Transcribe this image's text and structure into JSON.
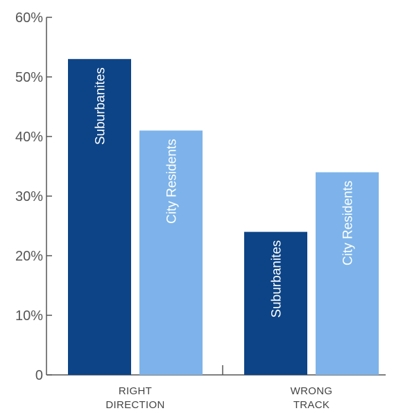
{
  "chart_data": {
    "type": "bar",
    "title": "",
    "xlabel": "",
    "ylabel": "",
    "ylim": [
      0,
      60
    ],
    "yticks": [
      "0",
      "10%",
      "20%",
      "30%",
      "40%",
      "50%",
      "60%"
    ],
    "yticks_values": [
      0,
      10,
      20,
      30,
      40,
      50,
      60
    ],
    "grid": false,
    "legend": "none",
    "categories": [
      "RIGHT DIRECTION",
      "WRONG TRACK"
    ],
    "category_lines": [
      [
        "RIGHT",
        "DIRECTION"
      ],
      [
        "WRONG",
        "TRACK"
      ]
    ],
    "series": [
      {
        "name": "Suburbanites",
        "color": "#0d4487",
        "values": [
          53,
          24
        ]
      },
      {
        "name": "City Residents",
        "color": "#7db3ea",
        "values": [
          41,
          34
        ]
      }
    ],
    "bar_labels": "series name, rotated vertically inside each bar"
  },
  "colors": {
    "axis": "#555555",
    "text": "#555555",
    "bar_label": "#ffffff"
  }
}
